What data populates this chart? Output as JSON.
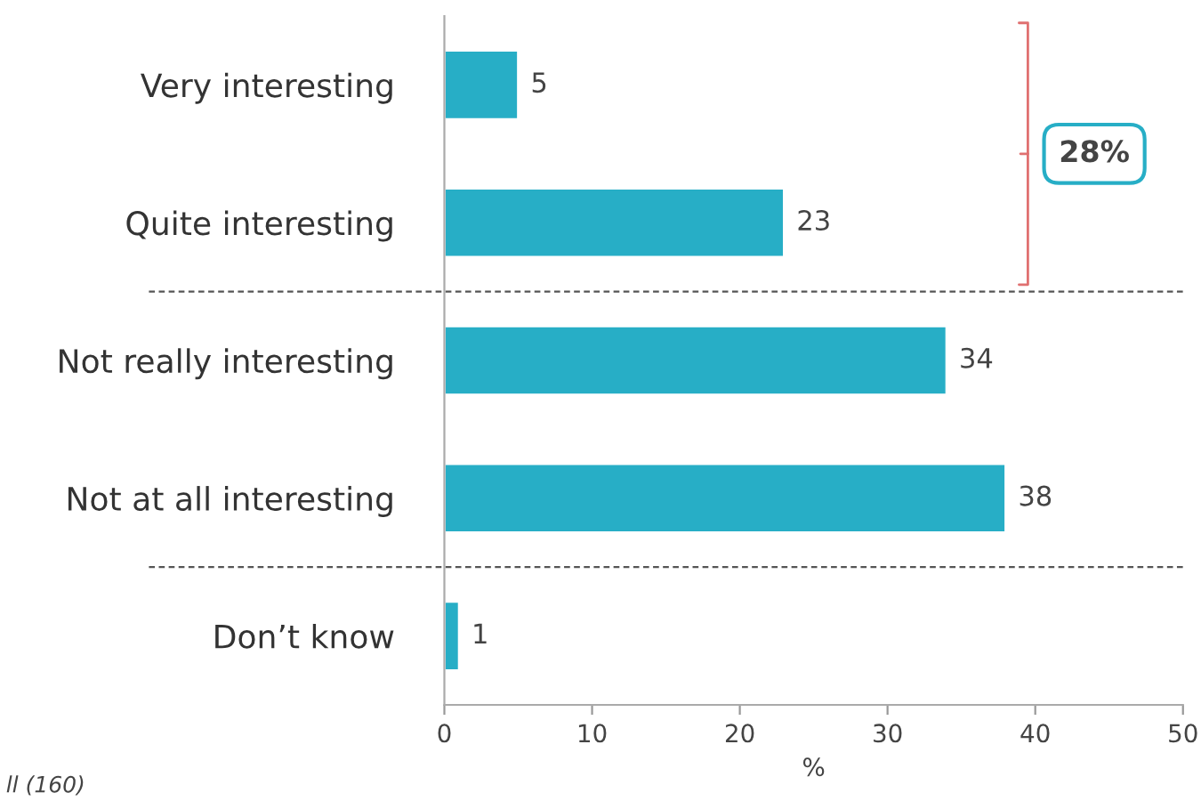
{
  "chart_data": {
    "type": "bar",
    "orientation": "horizontal",
    "xlabel": "%",
    "categories": [
      "Very interesting",
      "Quite interesting",
      "Not really interesting",
      "Not at all interesting",
      "Don’t know"
    ],
    "values": [
      5,
      23,
      34,
      38,
      1
    ],
    "color": "#27aec6",
    "data_labels": true,
    "xlim": [
      0,
      50
    ],
    "xticks": [
      0,
      10,
      20,
      30,
      40,
      50
    ],
    "grid": false,
    "annotations": [
      "28%",
      "ll (160)"
    ]
  }
}
